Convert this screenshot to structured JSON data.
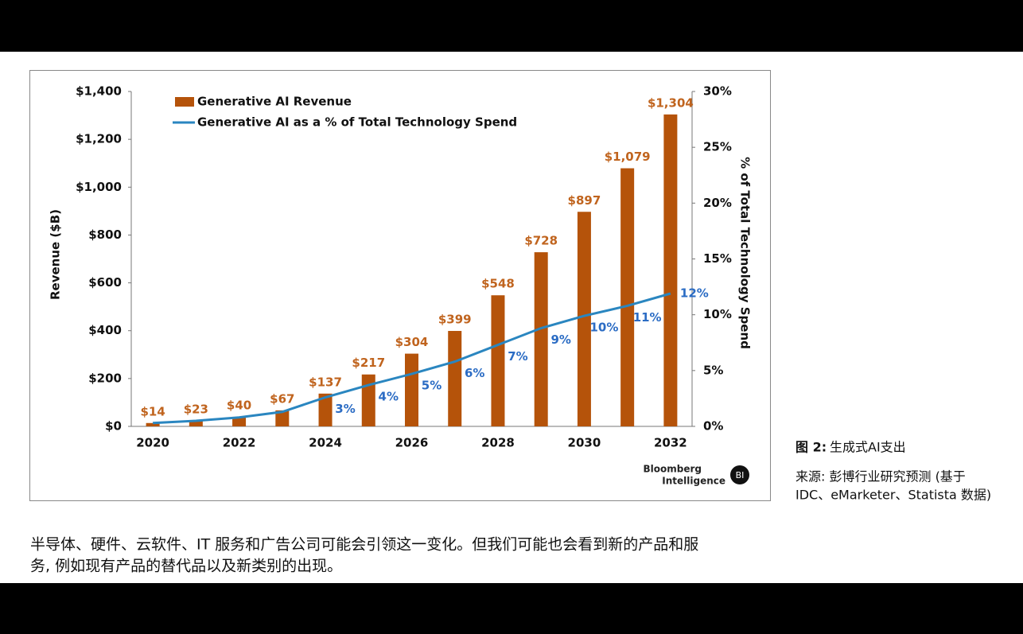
{
  "chart_data": {
    "type": "bar",
    "categories": [
      "2020",
      null,
      "2022",
      null,
      "2024",
      null,
      "2026",
      null,
      "2028",
      null,
      "2030",
      null,
      "2032"
    ],
    "series": [
      {
        "name": "Generative AI Revenue",
        "type": "bar",
        "color": "#b5530a",
        "values": [
          14,
          23,
          40,
          67,
          137,
          217,
          304,
          399,
          548,
          728,
          897,
          1079,
          1304
        ],
        "value_labels": [
          "$14",
          "$23",
          "$40",
          "$67",
          "$137",
          "$217",
          "$304",
          "$399",
          "$548",
          "$728",
          "$897",
          "$1,079",
          "$1,304"
        ]
      },
      {
        "name": "Generative AI as a % of Total Technology Spend",
        "type": "line",
        "axis": "y2",
        "color": "#2a86c0",
        "values": [
          0.3,
          0.5,
          0.8,
          1.3,
          2.6,
          3.7,
          4.7,
          5.8,
          7.3,
          8.8,
          9.9,
          10.8,
          11.9
        ],
        "value_labels": [
          null,
          null,
          null,
          null,
          "3%",
          "4%",
          "5%",
          "6%",
          "7%",
          "9%",
          "10%",
          "11%",
          "12%"
        ]
      }
    ],
    "y_label": "Revenue ($B)",
    "y2_label": "% of Total Technology Spend",
    "ylim": [
      0,
      1400
    ],
    "yticks": [
      {
        "value": 0,
        "label": "$0"
      },
      {
        "value": 200,
        "label": "$200"
      },
      {
        "value": 400,
        "label": "$400"
      },
      {
        "value": 600,
        "label": "$600"
      },
      {
        "value": 800,
        "label": "$800"
      },
      {
        "value": 1000,
        "label": "$1,000"
      },
      {
        "value": 1200,
        "label": "$1,200"
      },
      {
        "value": 1400,
        "label": "$1,400"
      }
    ],
    "y2lim": [
      0,
      30
    ],
    "y2ticks": [
      {
        "value": 0,
        "label": "0%"
      },
      {
        "value": 5,
        "label": "5%"
      },
      {
        "value": 10,
        "label": "10%"
      },
      {
        "value": 15,
        "label": "15%"
      },
      {
        "value": 20,
        "label": "20%"
      },
      {
        "value": 25,
        "label": "25%"
      },
      {
        "value": 30,
        "label": "30%"
      }
    ],
    "legend": "upper left",
    "grid": false,
    "logo": {
      "line1": "Bloomberg",
      "line2": "Intelligence",
      "badge": "BI"
    }
  },
  "caption": {
    "label": "图 2:",
    "text": "生成式AI支出"
  },
  "source": [
    "来源: 彭博行业研究预测 (基于",
    "IDC、eMarketer、Statista 数据)"
  ],
  "body": [
    "半导体、硬件、云软件、IT 服务和广告公司可能会引领这一变化。但我们可能也会看到新的产品和服",
    "务, 例如现有产品的替代品以及新类别的出现。"
  ]
}
